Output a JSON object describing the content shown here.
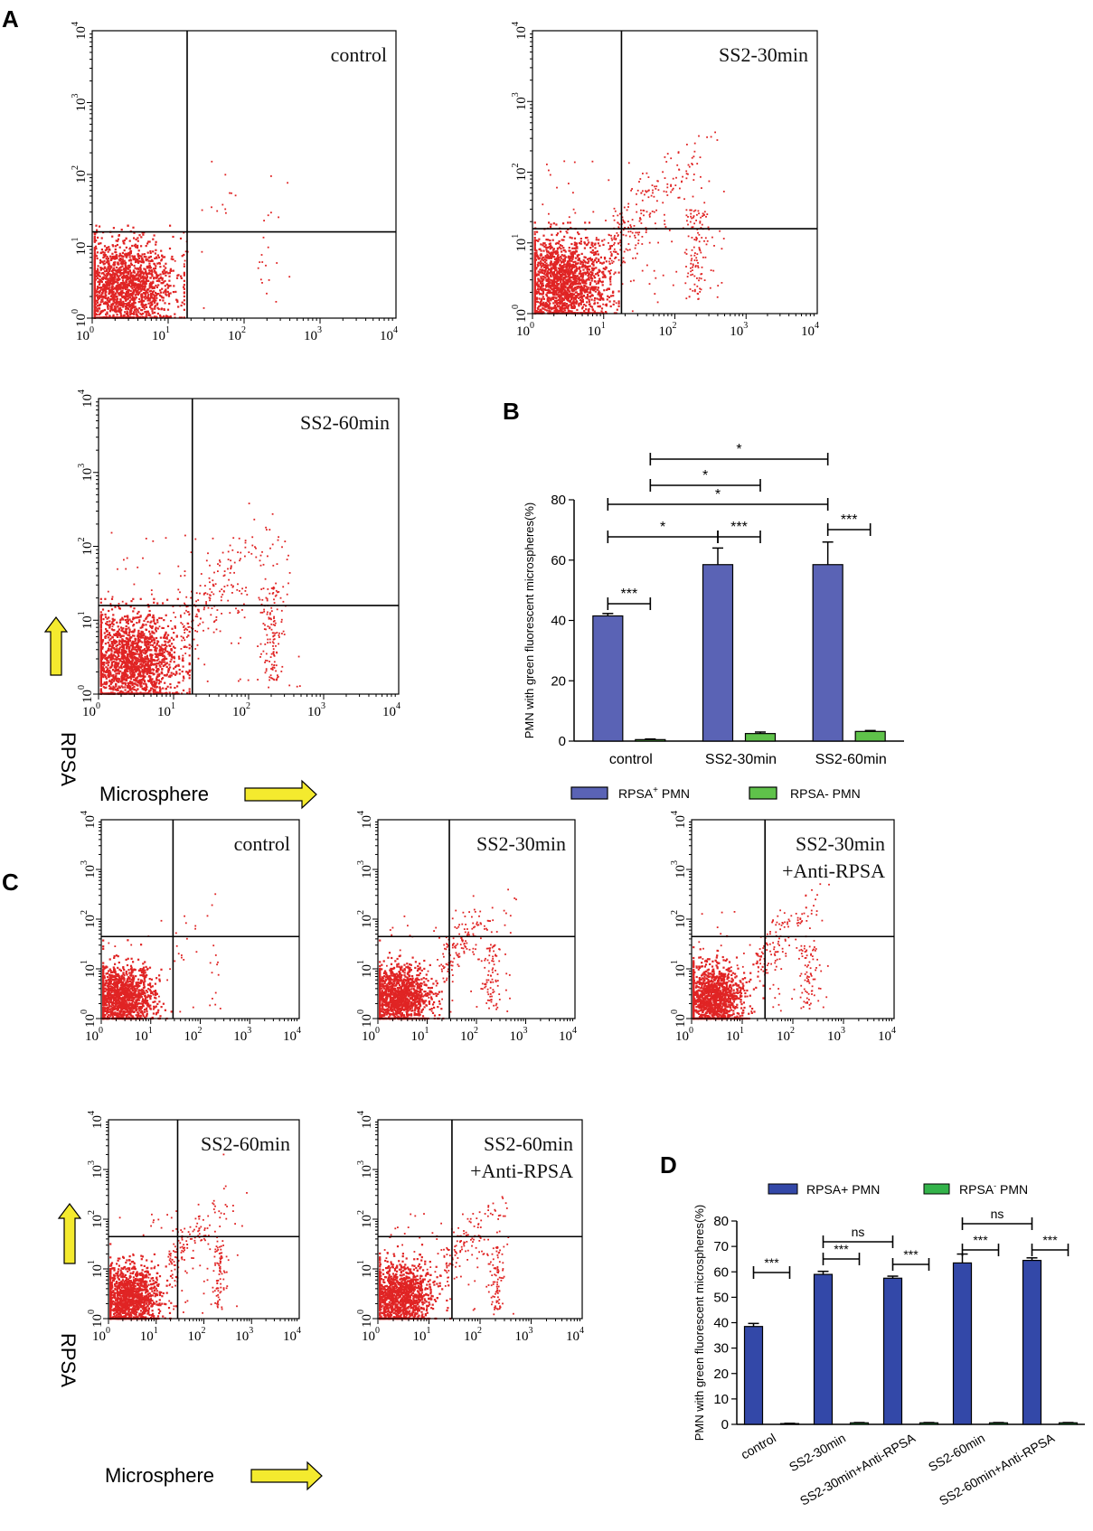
{
  "panel_labels": [
    "A",
    "B",
    "C",
    "D"
  ],
  "scatter": {
    "tick_base": "10",
    "tick_exponents": [
      "0",
      "1",
      "2",
      "3",
      "4"
    ],
    "x_label": "Microsphere",
    "y_label": "RPSA",
    "dot_color": "#e02424",
    "plots": [
      {
        "id": "A1",
        "title_lines": [
          "control"
        ],
        "gate": [
          1.25,
          1.2
        ],
        "spread": "low"
      },
      {
        "id": "A2",
        "title_lines": [
          "SS2-30min"
        ],
        "gate": [
          1.25,
          1.2
        ],
        "spread": "high"
      },
      {
        "id": "A3",
        "title_lines": [
          "SS2-60min"
        ],
        "gate": [
          1.25,
          1.2
        ],
        "spread": "high"
      },
      {
        "id": "C1",
        "title_lines": [
          "control"
        ],
        "gate": [
          1.45,
          1.65
        ],
        "spread": "low"
      },
      {
        "id": "C2",
        "title_lines": [
          "SS2-30min"
        ],
        "gate": [
          1.45,
          1.65
        ],
        "spread": "mid"
      },
      {
        "id": "C3",
        "title_lines": [
          "SS2-30min",
          "+Anti-RPSA"
        ],
        "gate": [
          1.45,
          1.65
        ],
        "spread": "mid"
      },
      {
        "id": "C4",
        "title_lines": [
          "SS2-60min"
        ],
        "gate": [
          1.45,
          1.65
        ],
        "spread": "mid"
      },
      {
        "id": "C5",
        "title_lines": [
          "SS2-60min",
          "+Anti-RPSA"
        ],
        "gate": [
          1.45,
          1.65
        ],
        "spread": "mid"
      }
    ]
  },
  "chart_data": [
    {
      "type": "bar",
      "panel": "B",
      "ylabel": "PMN with green fluorescent microspheres(%)",
      "ylim": [
        0,
        80
      ],
      "yticks": [
        "0",
        "20",
        "40",
        "60",
        "80"
      ],
      "categories": [
        "control",
        "SS2-30min",
        "SS2-60min"
      ],
      "series": [
        {
          "name": "RPSA",
          "name_sup": "+",
          "name_rest": " PMN",
          "color": "#5a63b5",
          "values": [
            41.5,
            58.5,
            58.5
          ],
          "errors": [
            0.8,
            5.5,
            7.5
          ]
        },
        {
          "name": "RPSA- PMN",
          "color": "#5fc24a",
          "values": [
            0.5,
            2.5,
            3.2
          ],
          "errors": [
            0.2,
            0.5,
            0.3
          ]
        }
      ],
      "significance": [
        "***",
        "*",
        "***",
        "***",
        "*",
        "*",
        "*"
      ]
    },
    {
      "type": "bar",
      "panel": "D",
      "ylabel": "PMN with green fluorescent microspheres(%)",
      "ylim": [
        0,
        80
      ],
      "yticks": [
        "0",
        "10",
        "20",
        "30",
        "40",
        "50",
        "60",
        "70",
        "80"
      ],
      "categories": [
        "control",
        "SS2-30min",
        "SS2-30min+Anti-RPSA",
        "SS2-60min",
        "SS2-60min+Anti-RPSA"
      ],
      "series": [
        {
          "name": "RPSA+ PMN",
          "color": "#3348a8",
          "values": [
            38.5,
            59.0,
            57.5,
            63.5,
            64.5
          ],
          "errors": [
            1.2,
            1.2,
            0.8,
            3.5,
            1.0
          ]
        },
        {
          "name": "RPSA",
          "name_sup": "-",
          "name_rest": " PMN",
          "color": "#33b34a",
          "values": [
            0.3,
            0.6,
            0.6,
            0.6,
            0.6
          ],
          "errors": [
            0.1,
            0.1,
            0.1,
            0.1,
            0.1
          ]
        }
      ],
      "significance": [
        "***",
        "***",
        "***",
        "ns",
        "***",
        "***",
        "ns"
      ]
    }
  ]
}
